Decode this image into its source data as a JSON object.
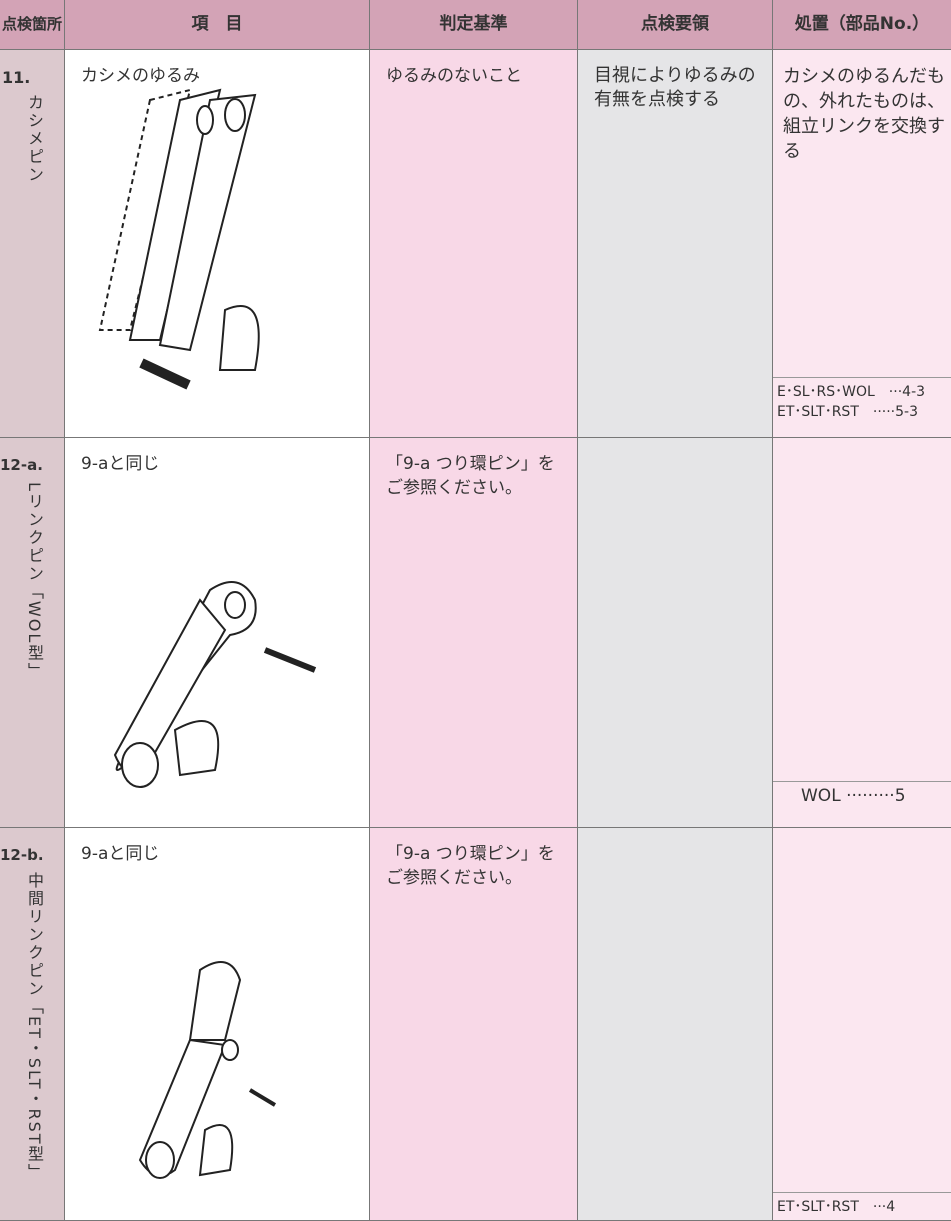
{
  "header": {
    "location": "点検箇所",
    "item": "項　目",
    "criterion": "判定基準",
    "method": "点検要領",
    "action": "処置（部品No.）"
  },
  "rows": [
    {
      "number": "11.",
      "location": "カシメピン",
      "item": "カシメのゆるみ",
      "criterion": "ゆるみのないこと",
      "method": "目視によりゆるみの有無を点検する",
      "action": "カシメのゆるんだもの、外れたものは、組立リンクを交換する",
      "parts": [
        "E･SL･RS･WOL　···4-3",
        "ET･SLT･RST　·····5-3"
      ]
    },
    {
      "number": "12-a.",
      "location": "Lリンクピン「WOL型」",
      "item": "9-aと同じ",
      "criterion": "「9-a つり環ピン」をご参照ください。",
      "method": "",
      "action": "",
      "parts": [
        "WOL ·········5"
      ]
    },
    {
      "number": "12-b.",
      "location": "中間リンクピン「ET・SLT・RST型」",
      "item": "9-aと同じ",
      "criterion": "「9-a つり環ピン」をご参照ください。",
      "method": "",
      "action": "",
      "parts": [
        "ET･SLT･RST　···4"
      ]
    }
  ]
}
